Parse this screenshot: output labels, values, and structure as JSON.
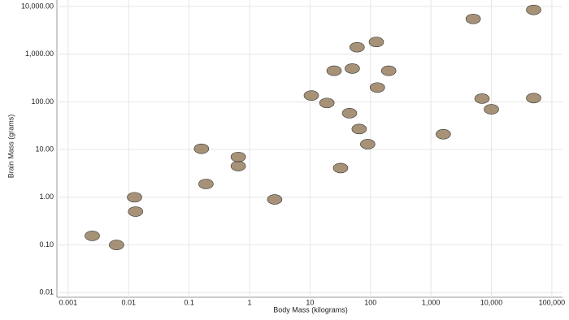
{
  "chart_data": {
    "type": "scatter",
    "xlabel": "Body Mass (kilograms)",
    "ylabel": "Brain Mass (grams)",
    "x": [
      50000,
      5000,
      125,
      60,
      200,
      25,
      50,
      130,
      10.5,
      19,
      7000,
      10000,
      50000,
      45,
      65,
      90,
      1600,
      0.16,
      0.65,
      0.65,
      32,
      0.19,
      2.6,
      0.0125,
      0.013,
      0.0025,
      0.0063
    ],
    "values": [
      8500,
      5500,
      1800,
      1400,
      450,
      450,
      500,
      200,
      136,
      95,
      117,
      70,
      120,
      58,
      27,
      13,
      21,
      10.4,
      4.5,
      7,
      4.1,
      1.9,
      0.9,
      1.0,
      0.5,
      0.155,
      0.1
    ],
    "color": "#8a6d4b",
    "log_x": true,
    "log_y": true,
    "grid": true,
    "xlim": [
      0.00065,
      150000
    ],
    "ylim": [
      0.008,
      10000
    ],
    "xticks": [
      0.001,
      0.01,
      0.1,
      1,
      10,
      100,
      {
        "value": 1000,
        "label": "1,000"
      },
      {
        "value": 10000,
        "label": "10,000"
      },
      {
        "value": 100000,
        "label": "100,000"
      }
    ],
    "yticks": [
      {
        "value": 0.01,
        "label": "0.01"
      },
      {
        "value": 0.1,
        "label": "0.10"
      },
      {
        "value": 1,
        "label": "1.00"
      },
      {
        "value": 10,
        "label": "10.00"
      },
      {
        "value": 100,
        "label": "100.00"
      },
      {
        "value": 1000,
        "label": "1,000.00"
      },
      {
        "value": 10000,
        "label": "10,000.00"
      }
    ]
  }
}
